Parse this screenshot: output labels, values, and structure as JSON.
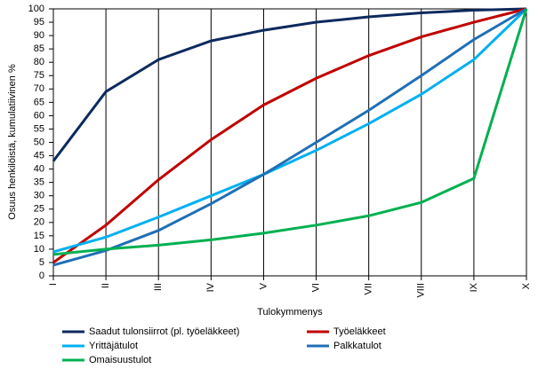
{
  "chart_data": {
    "type": "line",
    "x_label": "Tulokymmenys",
    "y_label": "Osuus henkilöistä, kumulatiivinen %",
    "categories": [
      "I",
      "II",
      "III",
      "IV",
      "V",
      "VI",
      "VII",
      "VIII",
      "IX",
      "X"
    ],
    "ylim": [
      0,
      100
    ],
    "yticks": [
      0,
      5,
      10,
      15,
      20,
      25,
      30,
      35,
      40,
      45,
      50,
      55,
      60,
      65,
      70,
      75,
      80,
      85,
      90,
      95,
      100
    ],
    "grid": "vertical",
    "series": [
      {
        "name": "Saadut tulonsiirrot (pl. työeläkkeet)",
        "color": "#0d2a5e",
        "values": [
          43,
          69,
          81,
          88,
          92,
          95,
          97,
          98.5,
          99.5,
          100
        ]
      },
      {
        "name": "Työeläkkeet",
        "color": "#c00000",
        "values": [
          5,
          19,
          36,
          51,
          64,
          74,
          82.5,
          89.5,
          95,
          100
        ]
      },
      {
        "name": "Yrittäjätulot",
        "color": "#00b0f0",
        "values": [
          9,
          14.5,
          22,
          30,
          38,
          47,
          57,
          68,
          81,
          100
        ]
      },
      {
        "name": "Palkkatulot",
        "color": "#1f6fb5",
        "values": [
          4,
          9.5,
          17,
          27,
          38,
          50,
          62,
          75,
          88.5,
          100
        ]
      },
      {
        "name": "Omaisuustulot",
        "color": "#00b050",
        "values": [
          8,
          10,
          11.5,
          13.5,
          16,
          19,
          22.5,
          27.5,
          36.5,
          100
        ]
      }
    ]
  }
}
